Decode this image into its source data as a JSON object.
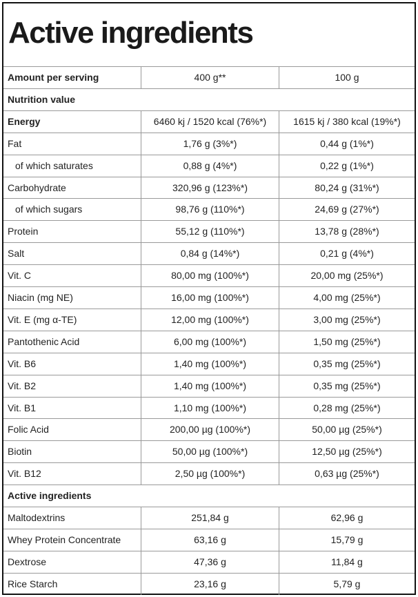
{
  "title": "Active ingredients",
  "table": {
    "rows": [
      [
        "Amount per serving",
        "400 g**",
        "100 g"
      ],
      [
        "Nutrition value"
      ],
      [
        "Energy",
        "6460 kj / 1520 kcal (76%*)",
        "1615 kj / 380 kcal (19%*)"
      ],
      [
        "Fat",
        "1,76 g (3%*)",
        "0,44 g (1%*)"
      ],
      [
        "of which saturates",
        "0,88 g (4%*)",
        "0,22 g (1%*)"
      ],
      [
        "Carbohydrate",
        "320,96 g (123%*)",
        "80,24 g (31%*)"
      ],
      [
        "of which sugars",
        "98,76 g (110%*)",
        "24,69 g (27%*)"
      ],
      [
        "Protein",
        "55,12 g (110%*)",
        "13,78 g (28%*)"
      ],
      [
        "Salt",
        "0,84 g (14%*)",
        "0,21 g (4%*)"
      ],
      [
        "Vit. C",
        "80,00 mg (100%*)",
        "20,00 mg (25%*)"
      ],
      [
        "Niacin (mg NE)",
        "16,00 mg (100%*)",
        "4,00 mg (25%*)"
      ],
      [
        "Vit. E (mg α-TE)",
        "12,00 mg (100%*)",
        "3,00 mg (25%*)"
      ],
      [
        "Pantothenic Acid",
        "6,00 mg (100%*)",
        "1,50 mg (25%*)"
      ],
      [
        "Vit. B6",
        "1,40 mg (100%*)",
        "0,35 mg (25%*)"
      ],
      [
        "Vit. B2",
        "1,40 mg (100%*)",
        "0,35 mg (25%*)"
      ],
      [
        "Vit. B1",
        "1,10 mg (100%*)",
        "0,28 mg (25%*)"
      ],
      [
        "Folic Acid",
        "200,00 µg (100%*)",
        "50,00 µg (25%*)"
      ],
      [
        "Biotin",
        "50,00 µg (100%*)",
        "12,50 µg (25%*)"
      ],
      [
        "Vit. B12",
        "2,50 µg (100%*)",
        "0,63 µg (25%*)"
      ],
      [
        "Active ingredients"
      ],
      [
        "Maltodextrins",
        "251,84 g",
        "62,96 g"
      ],
      [
        "Whey Protein Concentrate",
        "63,16 g",
        "15,79 g"
      ],
      [
        "Dextrose",
        "47,36 g",
        "11,84 g"
      ],
      [
        "Rice Starch",
        "23,16 g",
        "5,79 g"
      ]
    ]
  }
}
